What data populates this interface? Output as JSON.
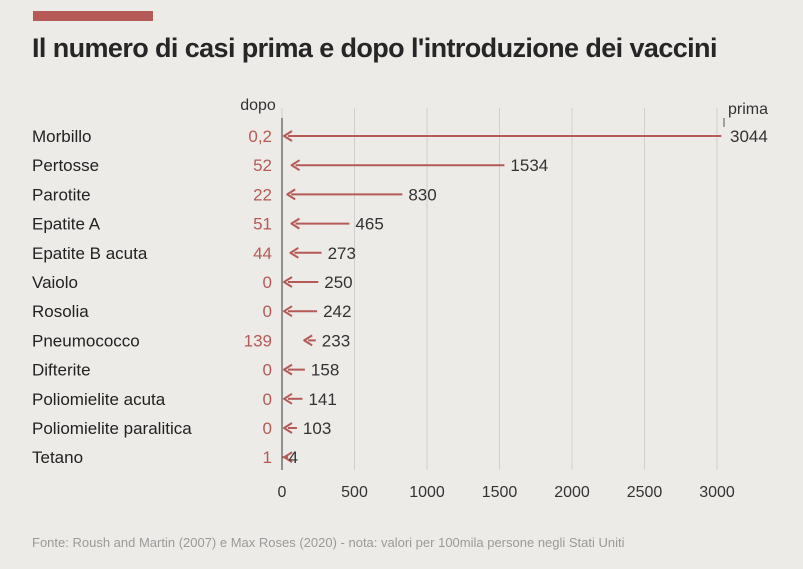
{
  "title": "Il numero di casi prima e dopo l'introduzione dei vaccini",
  "source": "Fonte: Roush and Martin (2007) e Max Roses (2020) - nota: valori per 100mila persone negli Stati Uniti",
  "colors": {
    "accent": "#b55a56",
    "arrow": "#b55a56",
    "text": "#2b2b2b",
    "grid": "#cfcfcf"
  },
  "chart_data": {
    "type": "bar",
    "header_left": "dopo",
    "header_right": "prima",
    "xlim": [
      0,
      3000
    ],
    "xticks": [
      0,
      500,
      1000,
      1500,
      2000,
      2500,
      3000
    ],
    "grid": true,
    "rows": [
      {
        "name": "Morbillo",
        "dopo": 0.2,
        "dopo_label": "0,2",
        "prima": 3044,
        "prima_label": "3044"
      },
      {
        "name": "Pertosse",
        "dopo": 52,
        "dopo_label": "52",
        "prima": 1534,
        "prima_label": "1534"
      },
      {
        "name": "Parotite",
        "dopo": 22,
        "dopo_label": "22",
        "prima": 830,
        "prima_label": "830"
      },
      {
        "name": "Epatite A",
        "dopo": 51,
        "dopo_label": "51",
        "prima": 465,
        "prima_label": "465"
      },
      {
        "name": "Epatite B acuta",
        "dopo": 44,
        "dopo_label": "44",
        "prima": 273,
        "prima_label": "273"
      },
      {
        "name": "Vaiolo",
        "dopo": 0,
        "dopo_label": "0",
        "prima": 250,
        "prima_label": "250"
      },
      {
        "name": "Rosolia",
        "dopo": 0,
        "dopo_label": "0",
        "prima": 242,
        "prima_label": "242"
      },
      {
        "name": "Pneumococco",
        "dopo": 139,
        "dopo_label": "139",
        "prima": 233,
        "prima_label": "233"
      },
      {
        "name": "Difterite",
        "dopo": 0,
        "dopo_label": "0",
        "prima": 158,
        "prima_label": "158"
      },
      {
        "name": "Poliomielite acuta",
        "dopo": 0,
        "dopo_label": "0",
        "prima": 141,
        "prima_label": "141"
      },
      {
        "name": "Poliomielite paralitica",
        "dopo": 0,
        "dopo_label": "0",
        "prima": 103,
        "prima_label": "103"
      },
      {
        "name": "Tetano",
        "dopo": 1,
        "dopo_label": "1",
        "prima": 4,
        "prima_label": "4"
      }
    ]
  }
}
